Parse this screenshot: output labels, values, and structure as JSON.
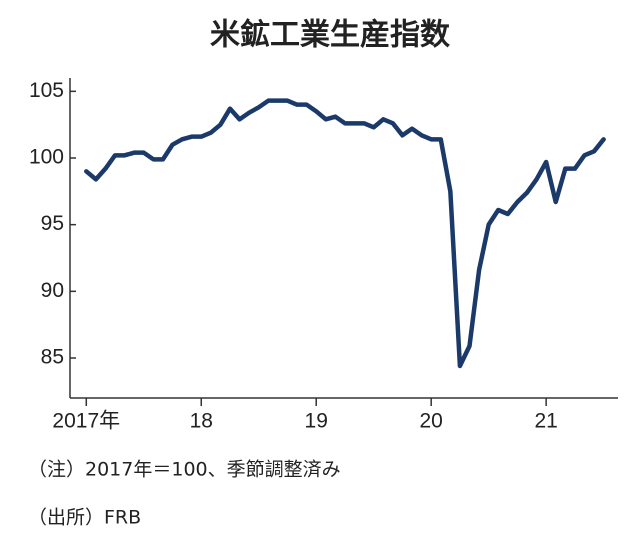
{
  "chart_data": {
    "type": "line",
    "title": "米鉱工業生産指数",
    "notes": [
      "（注）2017年＝100、季節調整済み",
      "（出所）FRB"
    ],
    "x": [
      0,
      1,
      2,
      3,
      4,
      5,
      6,
      7,
      8,
      9,
      10,
      11,
      12,
      13,
      14,
      15,
      16,
      17,
      18,
      19,
      20,
      21,
      22,
      23,
      24,
      25,
      26,
      27,
      28,
      29,
      30,
      31,
      32,
      33,
      34,
      35,
      36,
      37,
      38,
      39,
      40,
      41,
      42,
      43,
      44,
      45,
      46,
      47,
      48,
      49,
      50,
      51,
      52,
      53,
      54
    ],
    "series": [
      {
        "color": "#1b3a6a",
        "values": [
          99.0,
          98.4,
          99.2,
          100.2,
          100.2,
          100.4,
          100.4,
          99.9,
          99.9,
          101.0,
          101.4,
          101.6,
          101.6,
          101.9,
          102.5,
          103.7,
          102.9,
          103.4,
          103.8,
          104.3,
          104.3,
          104.3,
          104.0,
          104.0,
          103.5,
          102.9,
          103.1,
          102.6,
          102.6,
          102.6,
          102.3,
          102.9,
          102.6,
          101.7,
          102.2,
          101.7,
          101.4,
          101.4,
          97.5,
          84.4,
          85.9,
          91.6,
          95.0,
          96.1,
          95.8,
          96.7,
          97.4,
          98.4,
          99.7,
          96.7,
          99.2,
          99.2,
          100.2,
          100.5,
          101.4
        ]
      }
    ],
    "xlim": [
      -1.7,
      55.5
    ],
    "xticks": [
      {
        "value": 0,
        "label": "2017年"
      },
      {
        "value": 12,
        "label": "18"
      },
      {
        "value": 24,
        "label": "19"
      },
      {
        "value": 36,
        "label": "20"
      },
      {
        "value": 48,
        "label": "21"
      }
    ],
    "ylim": [
      82,
      106
    ],
    "yticks": [
      85,
      90,
      95,
      100,
      105
    ]
  }
}
